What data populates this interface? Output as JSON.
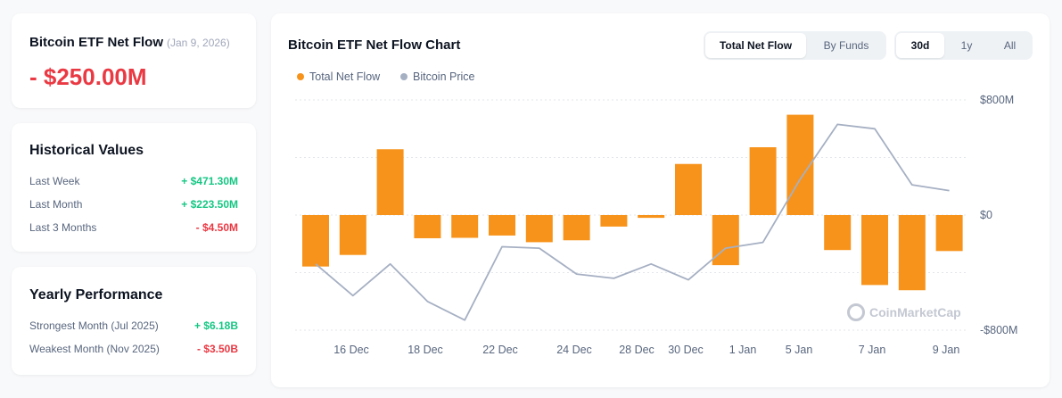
{
  "net_flow": {
    "title": "Bitcoin ETF Net Flow",
    "date": "(Jan 9, 2026)",
    "value": "- $250.00M"
  },
  "historical": {
    "title": "Historical Values",
    "rows": [
      {
        "label": "Last Week",
        "value": "+ $471.30M"
      },
      {
        "label": "Last Month",
        "value": "+ $223.50M"
      },
      {
        "label": "Last 3 Months",
        "value": "- $4.50M"
      }
    ]
  },
  "yearly": {
    "title": "Yearly Performance",
    "rows": [
      {
        "label": "Strongest Month",
        "period": "(Jul 2025)",
        "value": "+ $6.18B"
      },
      {
        "label": "Weakest Month",
        "period": "(Nov 2025)",
        "value": "- $3.50B"
      }
    ]
  },
  "chart_panel": {
    "title": "Bitcoin ETF Net Flow Chart",
    "type_toggle": [
      "Total Net Flow",
      "By Funds"
    ],
    "range_toggle": [
      "30d",
      "1y",
      "All"
    ],
    "watermark": "CoinMarketCap"
  },
  "colors": {
    "flow_bar": "#f7931a",
    "price_line": "#a6b0c3",
    "positive": "#16c784",
    "negative": "#ea3943"
  },
  "chart_data": {
    "type": "bar",
    "title": "Bitcoin ETF Net Flow Chart",
    "legend": [
      "Total Net Flow",
      "Bitcoin Price"
    ],
    "x_tick_labels": [
      "16 Dec",
      "18 Dec",
      "22 Dec",
      "24 Dec",
      "28 Dec",
      "30 Dec",
      "1 Jan",
      "5 Jan",
      "7 Jan",
      "9 Jan"
    ],
    "y_tick_labels": [
      "$800M",
      "$0",
      "-$800M"
    ],
    "ylim": [
      -800,
      800
    ],
    "series": [
      {
        "name": "Total Net Flow",
        "kind": "bar",
        "unit": "USD millions",
        "values": [
          -357.6,
          -277.2,
          457.3,
          -161.1,
          -158.2,
          -142.2,
          -188.6,
          -175.3,
          -80,
          -19.3,
          355.1,
          -348.1,
          471.3,
          697.2,
          -243.2,
          -486.1,
          -522.4,
          -250.0
        ]
      },
      {
        "name": "Bitcoin Price",
        "kind": "line",
        "values": [
          -340,
          -560,
          -340,
          -600,
          -730,
          -220,
          -230,
          -410,
          -440,
          -340,
          -450,
          -230,
          -190,
          250,
          630,
          600,
          210,
          170
        ]
      }
    ]
  }
}
